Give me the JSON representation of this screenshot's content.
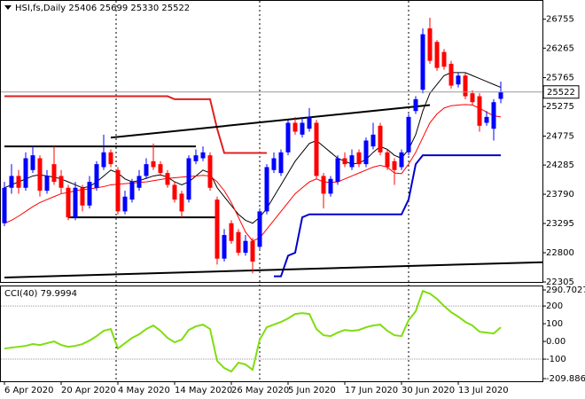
{
  "chart_data": [
    {
      "type": "candlestick",
      "title": "HSI,fs,Daily  25406 25699 25330 25522",
      "categories": [
        "6 Apr 2020",
        null,
        null,
        null,
        null,
        null,
        null,
        null,
        "20 Apr 2020",
        null,
        null,
        null,
        null,
        null,
        null,
        null,
        "4 May 2020",
        null,
        null,
        null,
        null,
        null,
        null,
        null,
        "14 May 2020",
        null,
        null,
        null,
        null,
        null,
        null,
        null,
        "26 May 2020",
        null,
        null,
        null,
        null,
        null,
        null,
        null,
        "5 Jun 2020",
        null,
        null,
        null,
        null,
        null,
        null,
        null,
        "17 Jun 2020",
        null,
        null,
        null,
        null,
        null,
        null,
        null,
        "30 Jun 2020",
        null,
        null,
        null,
        null,
        null,
        null,
        null,
        "13 Jul 2020",
        null,
        null,
        null,
        null,
        null,
        null
      ],
      "open": [
        23300,
        23900,
        24100,
        23900,
        24200,
        24400,
        23850,
        24300,
        24100,
        23900,
        23400,
        23900,
        23600,
        23900,
        24250,
        24500,
        24200,
        23500,
        23700,
        23900,
        24100,
        24350,
        24300,
        24150,
        23950,
        23800,
        23700,
        24350,
        24400,
        24450,
        23700,
        22700,
        23300,
        23150,
        22800,
        23000,
        22900,
        23500,
        24200,
        24150,
        24500,
        25000,
        24800,
        24900,
        25000,
        24100,
        23800,
        24000,
        24400,
        24250,
        24500,
        24300,
        24600,
        24950,
        24500,
        24350,
        24250,
        24500,
        25200,
        25560,
        26600,
        26370,
        26200,
        26000,
        25650,
        25800,
        25500,
        25450,
        25000,
        24900,
        25406
      ],
      "high": [
        24000,
        24300,
        24200,
        24500,
        24600,
        24450,
        24200,
        24600,
        24200,
        23950,
        24000,
        23950,
        24100,
        24350,
        24800,
        24550,
        24250,
        23850,
        24050,
        24200,
        24400,
        24650,
        24350,
        24200,
        24000,
        23850,
        24450,
        24550,
        24600,
        24500,
        23750,
        23200,
        23350,
        23200,
        23100,
        23050,
        23550,
        24300,
        24500,
        24550,
        25050,
        25100,
        25100,
        25250,
        25050,
        24150,
        24100,
        24450,
        24500,
        24550,
        24550,
        24750,
        25000,
        25000,
        24550,
        24400,
        24550,
        25150,
        25450,
        26600,
        26780,
        26400,
        26250,
        26050,
        25850,
        25850,
        25550,
        25500,
        25200,
        25400,
        25699
      ],
      "low": [
        23250,
        23800,
        23800,
        23850,
        24150,
        23750,
        23800,
        23950,
        23800,
        23350,
        23350,
        23500,
        23550,
        23850,
        24200,
        24250,
        23450,
        23450,
        23650,
        23850,
        24050,
        24200,
        24100,
        23900,
        23650,
        23400,
        23650,
        24300,
        24350,
        23850,
        22600,
        22650,
        22950,
        22750,
        22750,
        22450,
        22850,
        23450,
        24150,
        24100,
        24450,
        24800,
        24750,
        24850,
        24050,
        23550,
        23750,
        23950,
        24250,
        24200,
        24250,
        24250,
        24550,
        24450,
        24200,
        23950,
        24200,
        24450,
        25150,
        25500,
        26000,
        25880,
        25900,
        25580,
        25600,
        25400,
        25300,
        24850,
        24950,
        24700,
        25330
      ],
      "close": [
        23900,
        24100,
        23900,
        24400,
        24450,
        23850,
        24100,
        24000,
        23900,
        23400,
        23900,
        23600,
        24000,
        24300,
        24500,
        24300,
        23500,
        23750,
        24000,
        24100,
        24300,
        24250,
        24150,
        23950,
        23700,
        23500,
        24400,
        24450,
        24500,
        23900,
        22700,
        23100,
        23000,
        22800,
        23000,
        22650,
        23500,
        24250,
        24400,
        24500,
        25000,
        24850,
        25000,
        25100,
        24100,
        23800,
        24050,
        24400,
        24300,
        24450,
        24300,
        24700,
        24800,
        24500,
        24250,
        24200,
        24500,
        25100,
        25400,
        26500,
        26050,
        25930,
        25950,
        25630,
        25800,
        25450,
        25350,
        24950,
        25100,
        25350,
        25522
      ],
      "up_color": "#0000ff",
      "down_color": "#ff0000",
      "ylim": [
        22305,
        27050
      ],
      "yticks": [
        26755,
        26265,
        25765,
        25275,
        24775,
        24285,
        23790,
        23295,
        22800,
        22305
      ],
      "overlays": [
        {
          "color": "#000000",
          "values": [
            23900,
            23950,
            24000,
            24050,
            24100,
            24120,
            24100,
            24080,
            24050,
            24000,
            23950,
            23900,
            23920,
            24000,
            24100,
            24200,
            24150,
            24050,
            24000,
            24020,
            24060,
            24100,
            24120,
            24080,
            24000,
            23950,
            24000,
            24100,
            24200,
            24150,
            23900,
            23750,
            23600,
            23450,
            23350,
            23300,
            23400,
            23550,
            23750,
            23950,
            24150,
            24350,
            24500,
            24650,
            24700,
            24600,
            24500,
            24400,
            24350,
            24300,
            24320,
            24380,
            24500,
            24600,
            24550,
            24450,
            24400,
            24550,
            24800,
            25200,
            25500,
            25650,
            25800,
            25850,
            25850,
            25850,
            25800,
            25750,
            25700,
            25650,
            25600
          ]
        },
        {
          "color": "#ff0000",
          "values": [
            23300,
            23350,
            23420,
            23500,
            23580,
            23650,
            23700,
            23750,
            23800,
            23820,
            23850,
            23870,
            23880,
            23900,
            23920,
            23950,
            23960,
            23970,
            23980,
            23990,
            24000,
            24020,
            24040,
            24060,
            24070,
            24080,
            24090,
            24100,
            24110,
            24100,
            24000,
            23850,
            23650,
            23400,
            23150,
            23000,
            23050,
            23200,
            23350,
            23500,
            23650,
            23800,
            23900,
            24000,
            24050,
            24000,
            23990,
            24000,
            24050,
            24100,
            24150,
            24200,
            24250,
            24280,
            24250,
            24150,
            24140,
            24300,
            24500,
            24750,
            25000,
            25150,
            25250,
            25290,
            25300,
            25310,
            25300,
            25250,
            25180,
            25120,
            25100
          ]
        },
        {
          "color": "#e02020",
          "values": [
            25450,
            25450,
            25450,
            25450,
            25450,
            25450,
            25450,
            25450,
            25450,
            25450,
            25450,
            25450,
            25450,
            25450,
            25450,
            25450,
            25450,
            25450,
            25450,
            25450,
            25450,
            25450,
            25450,
            25450,
            25400,
            25400,
            25400,
            25400,
            25400,
            25400,
            24900,
            24490,
            24490,
            24490,
            24490,
            24490,
            24490,
            24490,
            null,
            null,
            null,
            null,
            null,
            null,
            null,
            null,
            null,
            null,
            null,
            null,
            null,
            null,
            null,
            null,
            null,
            null,
            null,
            null,
            null,
            null,
            null,
            null,
            null,
            null,
            null,
            null,
            null,
            null,
            null,
            null,
            null
          ]
        },
        {
          "color": "#0000cc",
          "values": [
            null,
            null,
            null,
            null,
            null,
            null,
            null,
            null,
            null,
            null,
            null,
            null,
            null,
            null,
            null,
            null,
            null,
            null,
            null,
            null,
            null,
            null,
            null,
            null,
            null,
            null,
            null,
            null,
            null,
            null,
            null,
            null,
            null,
            null,
            null,
            null,
            null,
            null,
            22400,
            22400,
            22750,
            22800,
            23400,
            23450,
            23450,
            23450,
            23450,
            23450,
            23450,
            23450,
            23450,
            23450,
            23450,
            23450,
            23450,
            23450,
            23450,
            23700,
            24300,
            24450,
            24450,
            24450,
            24450,
            24450,
            24450,
            24450,
            24450,
            24450,
            24450,
            24450,
            24450
          ]
        }
      ],
      "trendlines": [
        {
          "color": "#000000",
          "points": [
            [
              0,
              24600
            ],
            [
              27,
              24600
            ]
          ]
        },
        {
          "color": "#000000",
          "points": [
            [
              9,
              23400
            ],
            [
              30,
              23400
            ]
          ]
        },
        {
          "color": "#000000",
          "points": [
            [
              15,
              24750
            ],
            [
              60,
              25300
            ]
          ]
        },
        {
          "color": "#000000",
          "points": [
            [
              0,
              22380
            ],
            [
              76,
              22640
            ]
          ]
        }
      ]
    },
    {
      "type": "line",
      "title": "CCI(40) 79.9994",
      "color": "#7fdd10",
      "values": [
        -40,
        -35,
        -30,
        -25,
        -15,
        -20,
        -10,
        0,
        -20,
        -30,
        -25,
        -15,
        5,
        30,
        60,
        70,
        -40,
        -10,
        20,
        40,
        70,
        90,
        60,
        20,
        -5,
        10,
        65,
        85,
        95,
        70,
        -110,
        -150,
        -170,
        -120,
        -130,
        -160,
        10,
        80,
        95,
        110,
        130,
        155,
        160,
        155,
        70,
        35,
        30,
        50,
        65,
        60,
        65,
        80,
        90,
        95,
        60,
        35,
        30,
        120,
        170,
        285,
        270,
        240,
        200,
        165,
        140,
        110,
        90,
        55,
        50,
        45,
        79.9994
      ],
      "ylim": [
        -209.886,
        290.7027
      ],
      "yticks": [
        290.7027,
        200,
        100,
        {
          "value": 0,
          "label": "0.00"
        },
        -100,
        -209.886
      ],
      "levels": [
        200,
        -100
      ]
    }
  ]
}
